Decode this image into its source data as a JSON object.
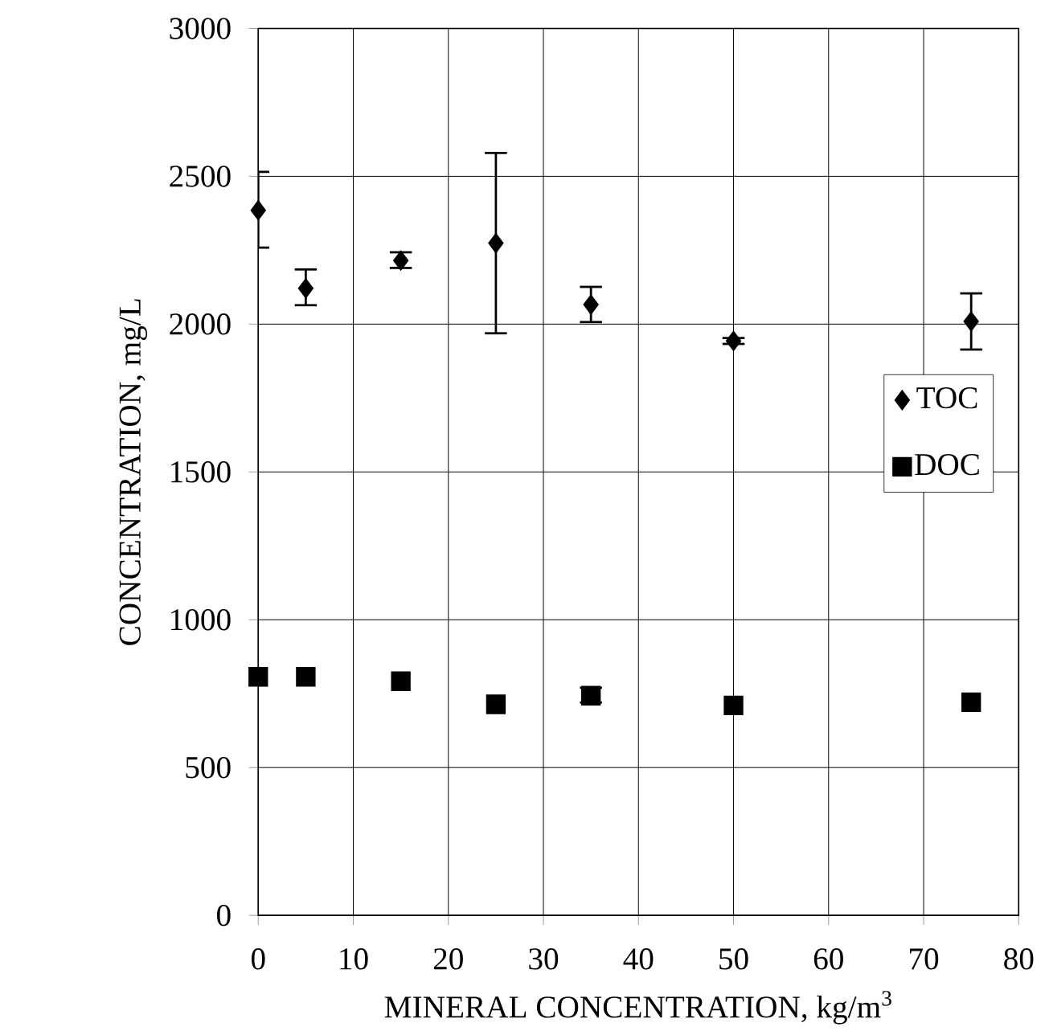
{
  "chart_data": {
    "type": "scatter",
    "xlabel": "MINERAL CONCENTRATION, kg/m$^{3}$",
    "ylabel": "CONCENTRATION, mg/L",
    "x": [
      0,
      5,
      15,
      25,
      35,
      50,
      75
    ],
    "series": [
      {
        "name": "TOC",
        "color": "#000000",
        "marker": "diamond",
        "values": [
          2385,
          2121,
          2215,
          2274,
          2066,
          1943,
          2009
        ],
        "errors": [
          [
            2259,
            2515
          ],
          [
            2064,
            2185
          ],
          [
            2190,
            2243
          ],
          [
            1969,
            2579
          ],
          [
            2007,
            2126
          ],
          [
            1933,
            1953
          ],
          [
            1914,
            2104
          ]
        ]
      },
      {
        "name": "DOC",
        "color": "#000000",
        "marker": "square",
        "values": [
          807,
          807,
          792,
          714,
          743,
          710,
          721
        ],
        "errors": [
          null,
          null,
          null,
          null,
          [
            720,
            770
          ],
          null,
          null
        ]
      }
    ],
    "xlim": [
      0,
      80
    ],
    "xticks": [
      0,
      10,
      20,
      30,
      40,
      50,
      60,
      70,
      80
    ],
    "ylim": [
      0,
      3000
    ],
    "yticks": [
      0,
      500,
      1000,
      1500,
      2000,
      2500,
      3000
    ],
    "grid": true,
    "legend": "right"
  }
}
